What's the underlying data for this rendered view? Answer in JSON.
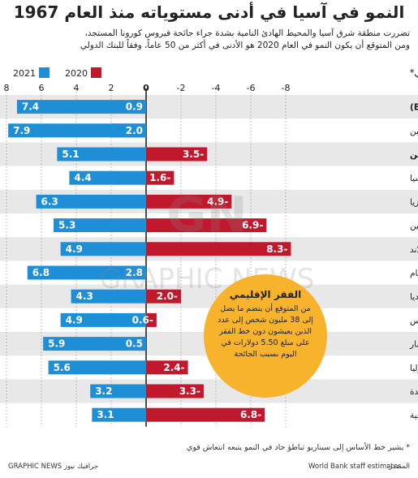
{
  "header": {
    "title": "النمو في آسيا في أدنى مستوياته منذ العام 1967",
    "subtitle_lines": [
      "تضررت منطقة شرق آسيا والمحيط الهادئ النامية بشدة جراء جائحة فيروس كورونا المستجد،",
      "ومن المتوقع أن يكون النمو في العام 2020 هو الأدنى في أكثر من 50 عاماً، وفقاً للبنك الدولي"
    ]
  },
  "callout": {
    "title": "الفقر الإقليمي",
    "text": "من المتوقع أن ينضم ما يصل إلى 38 مليون شخص إلى عدد الذين يعيشون دون خط الفقر على مبلغ 5.50 دولارات في اليوم بسبب الجائحة"
  },
  "footer": {
    "footnote": "* يشير خط الأساس إلى سيناريو تباطؤ حاد في النمو يتبعه انتعاش قوي",
    "source_label": "المصدر:",
    "source_text": "World Bank staff estimates",
    "credit": "GRAPHIC NEWS جرافيك نيوز"
  },
  "chart_data": {
    "type": "bar",
    "title": "النمو في آسيا في أدنى مستوياته منذ العام 1967",
    "ylabel": "توقعات نمو الناتج المحلي الإجمالي الأساسي*",
    "axis_ticks": [
      "8",
      "6",
      "4",
      "2",
      "0",
      "-2",
      "-4",
      "-6",
      "-8"
    ],
    "axis_values": [
      8,
      6,
      4,
      2,
      0,
      -2,
      -4,
      -6,
      -8
    ],
    "xlim": [
      -8,
      8
    ],
    "grid": true,
    "legend": [
      {
        "name": "2020",
        "color": "#c0182d"
      },
      {
        "name": "2021",
        "color": "#1e8fd6"
      }
    ],
    "categories": [
      "الدول النامية لمنطقة شرق آسيا والمحيط الهادئ (EAP)",
      "الصين",
      "دول EAP باستثناء الصين",
      "إندونيسيا",
      "ماليزيا",
      "الفلبين",
      "تايلاند",
      "فيتنام",
      "كمبوديا",
      "لاوس",
      "ميانمار",
      "منغوليا",
      "بابوا غينيا الجديدة",
      "تيمور الشرقية"
    ],
    "bold_rows": [
      0,
      2
    ],
    "series": [
      {
        "name": "2020",
        "color": "#c0182d",
        "values": [
          0.9,
          2.0,
          -3.5,
          -1.6,
          -4.9,
          -6.9,
          -8.3,
          2.8,
          -2.0,
          -0.6,
          0.5,
          -2.4,
          -3.3,
          -6.8
        ],
        "labels": [
          "0.9",
          "2.0",
          "3.5-",
          "1.6-",
          "4.9-",
          "6.9-",
          "8.3-",
          "2.8",
          "2.0-",
          "0.6-",
          "0.5",
          "2.4-",
          "3.3-",
          "6.8-"
        ]
      },
      {
        "name": "2021",
        "color": "#1e8fd6",
        "values": [
          7.4,
          7.9,
          5.1,
          4.4,
          6.3,
          5.3,
          4.9,
          6.8,
          4.3,
          4.9,
          5.9,
          5.6,
          3.2,
          3.1
        ],
        "labels": [
          "7.4",
          "7.9",
          "5.1",
          "4.4",
          "6.3",
          "5.3",
          "4.9",
          "6.8",
          "4.3",
          "4.9",
          "5.9",
          "5.6",
          "3.2",
          "3.1"
        ]
      }
    ]
  }
}
